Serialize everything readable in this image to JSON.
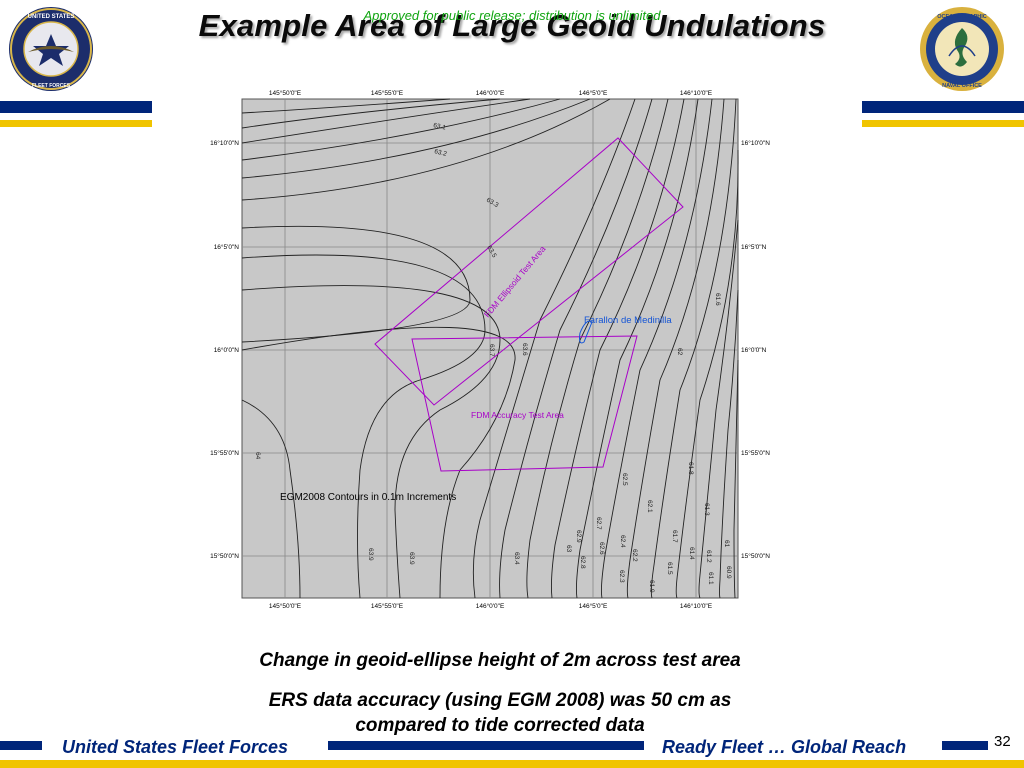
{
  "header": {
    "title": "Example Area of Large Geoid Undulations",
    "notice": "Approved for public release; distribution is unlimited"
  },
  "logos": {
    "left_seal_text": "UNITED STATES FLEET FORCES COMMAND",
    "right_seal_text": "NAVAL OCEANOGRAPHIC OFFICE"
  },
  "map": {
    "top_longitudes": [
      "145°50'0\"E",
      "145°55'0\"E",
      "146°0'0\"E",
      "146°5'0\"E",
      "146°10'0\"E"
    ],
    "bottom_longitudes": [
      "145°50'0\"E",
      "145°55'0\"E",
      "146°0'0\"E",
      "146°5'0\"E",
      "146°10'0\"E"
    ],
    "left_latitudes": [
      "16°10'0\"N",
      "16°5'0\"N",
      "16°0'0\"N",
      "15°55'0\"N",
      "15°50'0\"N"
    ],
    "right_latitudes": [
      "16°10'0\"N",
      "16°5'0\"N",
      "16°0'0\"N",
      "15°55'0\"N",
      "15°50'0\"N"
    ],
    "ellipsoid_area_label": "FDM Ellipsoid Test Area",
    "accuracy_area_label": "FDM Accuracy Test Area",
    "island_label": "Farallon de Medinilla",
    "contour_note": "EGM2008 Contours in 0.1m Increments",
    "contour_values": [
      "63.1",
      "63.2",
      "63.3",
      "63.5",
      "63.7",
      "63.6",
      "64",
      "63.9",
      "63.9",
      "63.4",
      "61.6",
      "62",
      "61.8",
      "62.5",
      "62.1",
      "61.3",
      "62.7",
      "62.9",
      "62.6",
      "63",
      "62.8",
      "62.4",
      "62.2",
      "62.3",
      "61.7",
      "61.9",
      "61.5",
      "61.4",
      "61.2",
      "61.1",
      "61",
      "60.9"
    ],
    "colors": {
      "background": "#c8c8c8",
      "contour": "#222222",
      "test_area": "#a800c8",
      "island_label": "#1555d6"
    }
  },
  "captions": {
    "line1": "Change in geoid-ellipse height of 2m across test area",
    "line2": "ERS data accuracy (using EGM 2008) was 50 cm as",
    "line3": "compared to tide corrected data"
  },
  "footer": {
    "left": "United States Fleet Forces",
    "right": "Ready Fleet … Global Reach",
    "page_number": "32"
  },
  "colors": {
    "navy": "#00257a",
    "gold": "#f0c400",
    "notice_green": "#11a511"
  }
}
